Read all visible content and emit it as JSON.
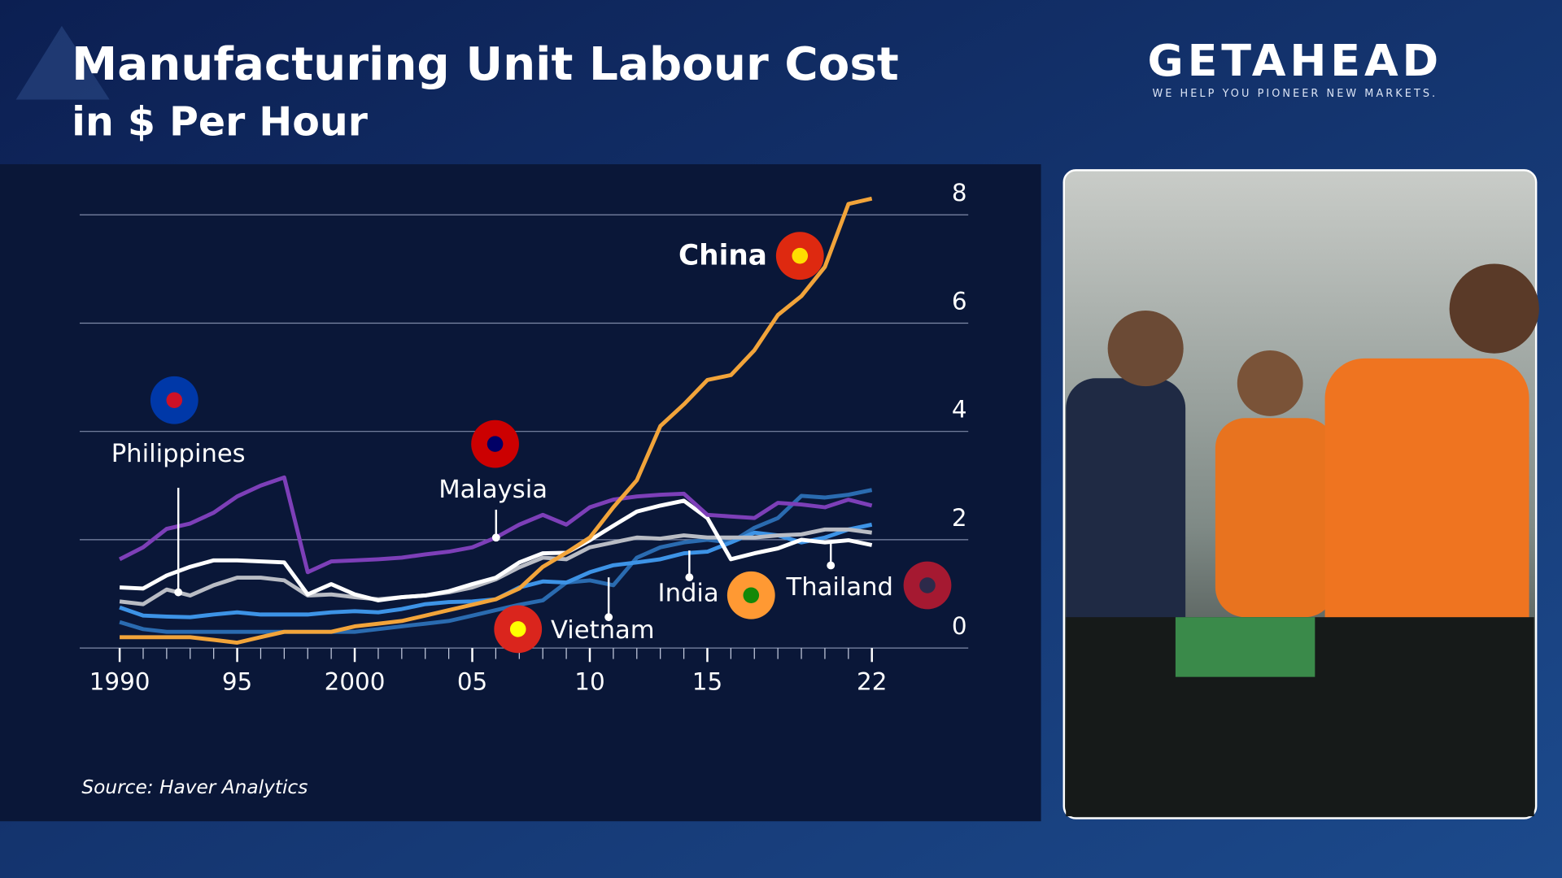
{
  "brand": {
    "name": "GETAHEAD",
    "tagline": "WE HELP YOU PIONEER NEW MARKETS."
  },
  "chart_data": {
    "type": "line",
    "title": "Manufacturing Unit Labour Cost",
    "subtitle": "in $ Per Hour",
    "source": "Source: Haver Analytics",
    "x": [
      1990,
      1991,
      1992,
      1993,
      1994,
      1995,
      1996,
      1997,
      1998,
      1999,
      2000,
      2001,
      2002,
      2003,
      2004,
      2005,
      2006,
      2007,
      2008,
      2009,
      2010,
      2011,
      2012,
      2013,
      2014,
      2015,
      2016,
      2017,
      2018,
      2019,
      2020,
      2021,
      2022
    ],
    "xlim": [
      1988.3,
      2026.1
    ],
    "xticks": [
      1990,
      {
        "value": 1995,
        "label": "95"
      },
      2000,
      {
        "value": 2005,
        "label": "05"
      },
      {
        "value": 2010,
        "label": "10"
      },
      {
        "value": 2015,
        "label": "15"
      },
      {
        "value": 2022,
        "label": "22"
      }
    ],
    "ylim": [
      0,
      8.5
    ],
    "yticks": [
      0,
      2,
      4,
      6,
      8
    ],
    "grid": true,
    "series": [
      {
        "name": "China",
        "color": "#f2a43a",
        "values": [
          0.2,
          0.2,
          0.2,
          0.2,
          0.15,
          0.1,
          0.2,
          0.3,
          0.3,
          0.3,
          0.4,
          0.45,
          0.5,
          0.6,
          0.7,
          0.8,
          0.9,
          1.1,
          1.5,
          1.76,
          2.04,
          2.6,
          3.1,
          4.1,
          4.5,
          4.95,
          5.04,
          5.5,
          6.15,
          6.5,
          7.04,
          8.2,
          8.3
        ]
      },
      {
        "name": "Philippines",
        "color": "#7d3fb8",
        "values": [
          1.64,
          1.86,
          2.2,
          2.3,
          2.5,
          2.8,
          3.0,
          3.15,
          1.4,
          1.6,
          1.62,
          1.64,
          1.67,
          1.73,
          1.78,
          1.86,
          2.04,
          2.28,
          2.46,
          2.28,
          2.6,
          2.74,
          2.8,
          2.83,
          2.85,
          2.46,
          2.43,
          2.4,
          2.68,
          2.65,
          2.6,
          2.74,
          2.63
        ]
      },
      {
        "name": "Malaysia",
        "color": "#ffffff",
        "values": [
          1.12,
          1.1,
          1.34,
          1.5,
          1.62,
          1.62,
          1.6,
          1.58,
          0.99,
          1.18,
          0.99,
          0.88,
          0.94,
          0.97,
          1.05,
          1.18,
          1.3,
          1.58,
          1.75,
          1.76,
          1.99,
          2.26,
          2.52,
          2.63,
          2.72,
          2.4,
          1.64,
          1.75,
          1.84,
          2.0,
          1.95,
          1.99,
          1.9
        ]
      },
      {
        "name": "Thailand",
        "color": "#b9bcc4",
        "values": [
          0.86,
          0.81,
          1.08,
          0.97,
          1.16,
          1.3,
          1.3,
          1.25,
          0.97,
          0.99,
          0.94,
          0.9,
          0.94,
          0.97,
          1.03,
          1.12,
          1.27,
          1.49,
          1.67,
          1.64,
          1.86,
          1.95,
          2.04,
          2.02,
          2.08,
          2.04,
          2.04,
          2.04,
          2.08,
          2.1,
          2.19,
          2.19,
          2.13
        ]
      },
      {
        "name": "India",
        "color": "#3d93e6",
        "values": [
          0.75,
          0.6,
          0.58,
          0.57,
          0.62,
          0.66,
          0.62,
          0.62,
          0.62,
          0.66,
          0.68,
          0.66,
          0.72,
          0.81,
          0.85,
          0.86,
          0.9,
          1.12,
          1.23,
          1.21,
          1.4,
          1.53,
          1.58,
          1.64,
          1.75,
          1.78,
          1.95,
          2.13,
          2.08,
          1.95,
          2.04,
          2.19,
          2.28
        ]
      },
      {
        "name": "Vietnam",
        "color": "#2a6bb0",
        "values": [
          0.48,
          0.35,
          0.3,
          0.3,
          0.3,
          0.3,
          0.3,
          0.3,
          0.3,
          0.3,
          0.3,
          0.35,
          0.4,
          0.45,
          0.5,
          0.6,
          0.7,
          0.8,
          0.88,
          1.21,
          1.25,
          1.16,
          1.67,
          1.86,
          1.95,
          2.0,
          1.95,
          2.22,
          2.4,
          2.81,
          2.78,
          2.83,
          2.92
        ]
      }
    ]
  }
}
